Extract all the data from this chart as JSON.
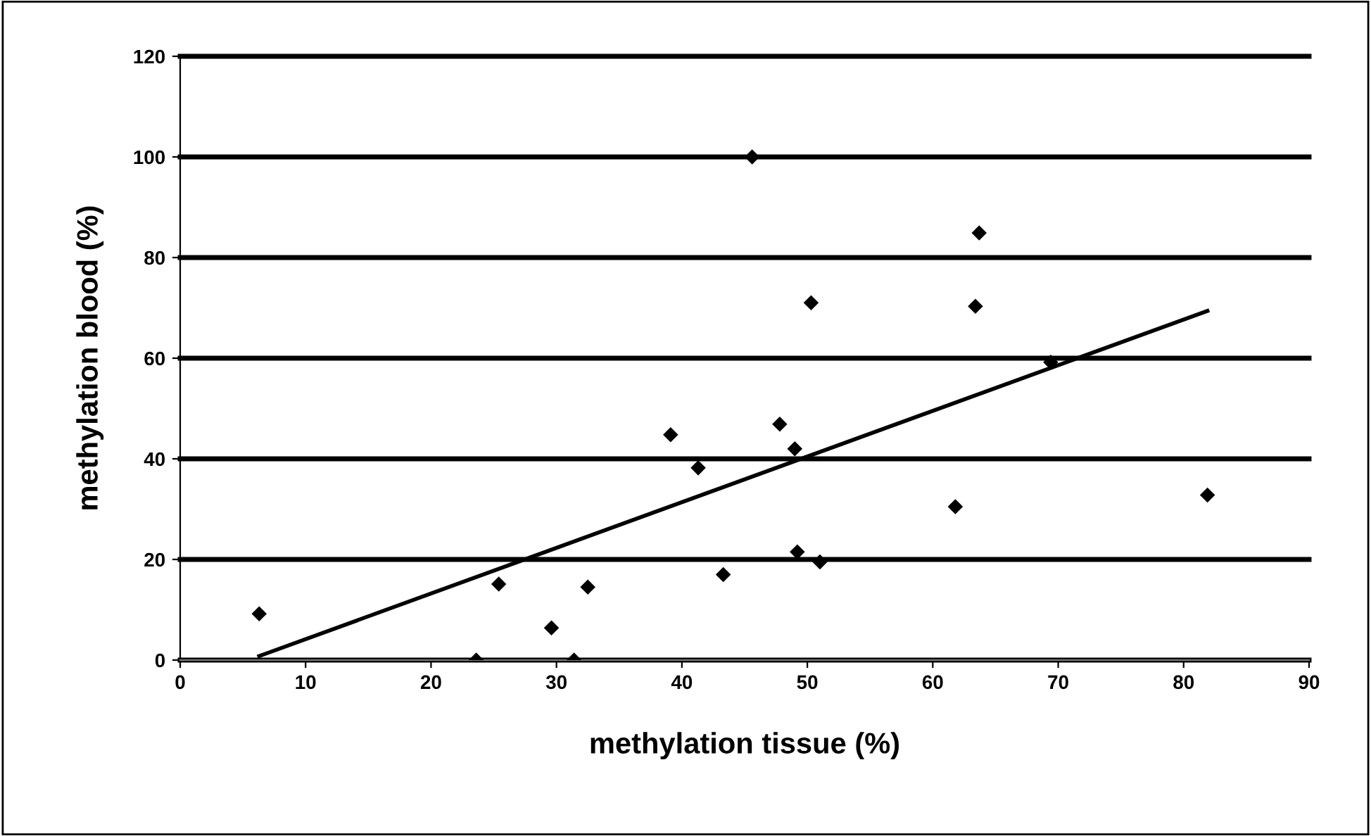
{
  "chart_data": {
    "type": "scatter",
    "xlabel": "methylation tissue (%)",
    "ylabel": "methylation blood (%)",
    "xlim": [
      0,
      90
    ],
    "ylim": [
      0,
      120
    ],
    "xticks": [
      0,
      10,
      20,
      30,
      40,
      50,
      60,
      70,
      80,
      90
    ],
    "yticks": [
      0,
      20,
      40,
      60,
      80,
      100,
      120
    ],
    "grid": "y",
    "legend": false,
    "series": [
      {
        "color": "#000000",
        "marker": "diamond",
        "x": [
          6.3,
          23.6,
          25.4,
          29.6,
          31.4,
          32.5,
          39.1,
          41.3,
          43.3,
          45.6,
          47.8,
          49.0,
          49.2,
          50.3,
          51.0,
          61.8,
          63.4,
          63.7,
          69.4,
          81.9
        ],
        "values": [
          9.2,
          0,
          15.1,
          6.4,
          0,
          14.5,
          44.8,
          38.2,
          17.0,
          100,
          46.9,
          42.0,
          21.5,
          71.0,
          19.5,
          30.5,
          70.3,
          84.9,
          59.2,
          32.8
        ]
      },
      {
        "type": "line",
        "color": "#000000",
        "marker": "none",
        "line_style": "solid",
        "x": [
          6.3,
          81.9
        ],
        "values": [
          0.8,
          69.4
        ]
      }
    ]
  }
}
